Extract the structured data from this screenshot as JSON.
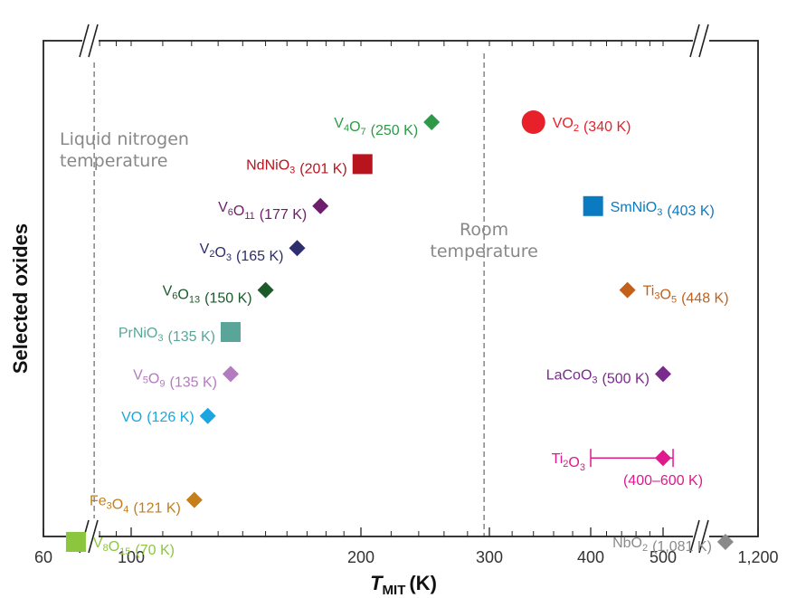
{
  "chart_data": {
    "type": "scatter",
    "title": "",
    "xscale": "log",
    "xlim": [
      60,
      1200
    ],
    "ylabel": "Selected oxides",
    "xlabel_main": "T",
    "xlabel_sub": "MIT",
    "xlabel_unit": "(K)",
    "xticks": [
      {
        "value": 60,
        "label": "60"
      },
      {
        "value": 100,
        "label": "100"
      },
      {
        "value": 200,
        "label": "200"
      },
      {
        "value": 300,
        "label": "300"
      },
      {
        "value": 400,
        "label": "400"
      },
      {
        "value": 500,
        "label": "500"
      },
      {
        "value": 1200,
        "label": "1,200"
      }
    ],
    "axis_breaks": [
      75,
      1000
    ],
    "reference_lines": [
      {
        "value": 77,
        "label_lines": [
          "Liquid nitrogen",
          "temperature"
        ],
        "label_align": "left"
      },
      {
        "value": 295,
        "label_lines": [
          "Room",
          "temperature"
        ],
        "label_align": "center"
      }
    ],
    "points": [
      {
        "name": "V4O7",
        "formula": [
          [
            "V",
            ""
          ],
          [
            "4",
            "sub"
          ],
          [
            "O",
            ""
          ],
          [
            "7",
            "sub"
          ]
        ],
        "value_text": "(250 K)",
        "x": 250,
        "row": 1,
        "marker": "diamond",
        "color": "#2e9a48",
        "label_side": "left"
      },
      {
        "name": "VO2",
        "formula": [
          [
            "VO",
            ""
          ],
          [
            "2",
            "sub"
          ]
        ],
        "value_text": "(340 K)",
        "x": 340,
        "row": 1,
        "marker": "circle",
        "color": "#e8202a",
        "label_side": "right"
      },
      {
        "name": "NdNiO3",
        "formula": [
          [
            "NdNiO",
            ""
          ],
          [
            "3",
            "sub"
          ]
        ],
        "value_text": "(201 K)",
        "x": 201,
        "row": 2,
        "marker": "square",
        "color": "#b8141e",
        "label_side": "left"
      },
      {
        "name": "V6O11",
        "formula": [
          [
            "V",
            ""
          ],
          [
            "6",
            "sub"
          ],
          [
            "O",
            ""
          ],
          [
            "11",
            "sub"
          ]
        ],
        "value_text": "(177 K)",
        "x": 177,
        "row": 3,
        "marker": "diamond",
        "color": "#6d1d6b",
        "label_side": "left"
      },
      {
        "name": "SmNiO3",
        "formula": [
          [
            "SmNiO",
            ""
          ],
          [
            "3",
            "sub"
          ]
        ],
        "value_text": "(403 K)",
        "x": 403,
        "row": 3,
        "marker": "square",
        "color": "#0a7bc1",
        "label_side": "right"
      },
      {
        "name": "V2O3",
        "formula": [
          [
            "V",
            ""
          ],
          [
            "2",
            "sub"
          ],
          [
            "O",
            ""
          ],
          [
            "3",
            "sub"
          ]
        ],
        "value_text": "(165 K)",
        "x": 165,
        "row": 4,
        "marker": "diamond",
        "color": "#2d2e6b",
        "label_side": "left"
      },
      {
        "name": "V6O13",
        "formula": [
          [
            "V",
            ""
          ],
          [
            "6",
            "sub"
          ],
          [
            "O",
            ""
          ],
          [
            "13",
            "sub"
          ]
        ],
        "value_text": "(150 K)",
        "x": 150,
        "row": 5,
        "marker": "diamond",
        "color": "#1d5a2a",
        "label_side": "left"
      },
      {
        "name": "Ti3O5",
        "formula": [
          [
            "Ti",
            ""
          ],
          [
            "3",
            "sub"
          ],
          [
            "O",
            ""
          ],
          [
            "5",
            "sub"
          ]
        ],
        "value_text": "(448 K)",
        "x": 448,
        "row": 5,
        "marker": "diamond",
        "color": "#c4601a",
        "label_side": "right"
      },
      {
        "name": "PrNiO3",
        "formula": [
          [
            "PrNiO",
            ""
          ],
          [
            "3",
            "sub"
          ]
        ],
        "value_text": "(135 K)",
        "x": 135,
        "row": 6,
        "marker": "square",
        "color": "#5aa59a",
        "label_side": "left"
      },
      {
        "name": "V5O9",
        "formula": [
          [
            "V",
            ""
          ],
          [
            "5",
            "sub"
          ],
          [
            "O",
            ""
          ],
          [
            "9",
            "sub"
          ]
        ],
        "value_text": "(135 K)",
        "x": 135,
        "row": 7,
        "marker": "diamond",
        "color": "#b37bc0",
        "label_side": "left"
      },
      {
        "name": "LaCoO3",
        "formula": [
          [
            "LaCoO",
            ""
          ],
          [
            "3",
            "sub"
          ]
        ],
        "value_text": "(500 K)",
        "x": 500,
        "row": 7,
        "marker": "diamond",
        "color": "#7a2a8c",
        "label_side": "left"
      },
      {
        "name": "VO",
        "formula": [
          [
            "VO",
            ""
          ]
        ],
        "value_text": "(126 K)",
        "x": 126,
        "row": 8,
        "marker": "diamond",
        "color": "#1ba6e0",
        "label_side": "left"
      },
      {
        "name": "Ti2O3",
        "formula": [
          [
            "Ti",
            ""
          ],
          [
            "2",
            "sub"
          ],
          [
            "O",
            ""
          ],
          [
            "3",
            "sub"
          ]
        ],
        "value_text": "",
        "range_text": "(400–600 K)",
        "x": 500,
        "xerr": [
          400,
          600
        ],
        "row": 9,
        "marker": "diamond",
        "color": "#e0198c",
        "label_side": "left"
      },
      {
        "name": "Fe3O4",
        "formula": [
          [
            "Fe",
            ""
          ],
          [
            "3",
            "sub"
          ],
          [
            "O",
            ""
          ],
          [
            "4",
            "sub"
          ]
        ],
        "value_text": "(121 K)",
        "x": 121,
        "row": 10,
        "marker": "diamond",
        "color": "#c47e1a",
        "label_side": "left"
      },
      {
        "name": "V8O15",
        "formula": [
          [
            "V",
            ""
          ],
          [
            "8",
            "sub"
          ],
          [
            "O",
            ""
          ],
          [
            "15",
            "sub"
          ]
        ],
        "value_text": "(70 K)",
        "x": 70,
        "row": 11,
        "marker": "square",
        "color": "#8cc63e",
        "label_side": "right"
      },
      {
        "name": "NbO2",
        "formula": [
          [
            "NbO",
            ""
          ],
          [
            "2",
            "sub"
          ]
        ],
        "value_text": "(1,081 K)",
        "x": 1081,
        "row": 11,
        "marker": "diamond",
        "color": "#8a8a8a",
        "label_side": "left"
      }
    ]
  }
}
